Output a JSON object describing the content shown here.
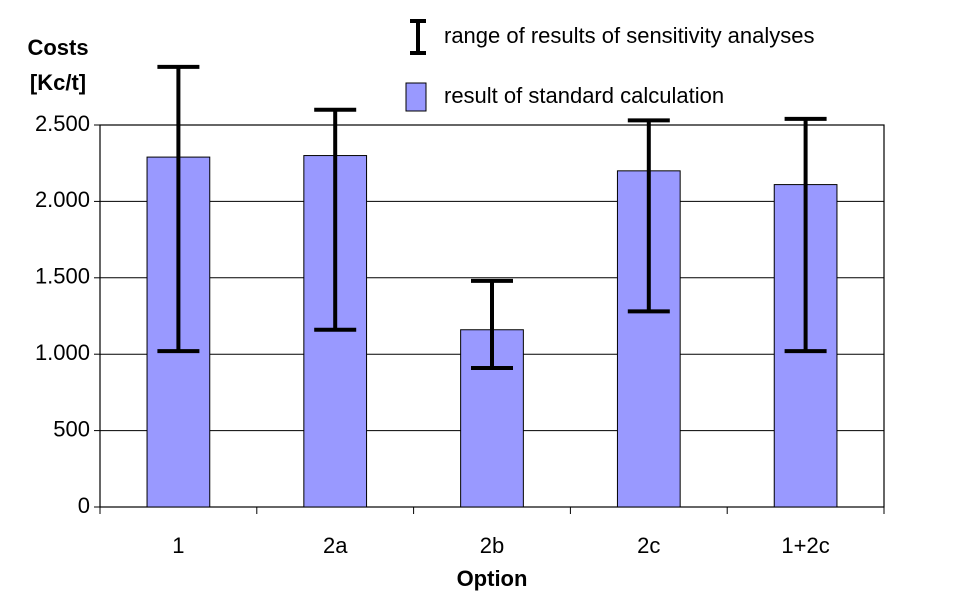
{
  "chart_data": {
    "type": "bar",
    "y_label": [
      "Costs",
      "[Kc/t]"
    ],
    "x_label": "Option",
    "categories": [
      "1",
      "2a",
      "2b",
      "2c",
      "1+2c"
    ],
    "series": [
      {
        "name": "result of standard calculation",
        "color": "#9999ff",
        "values": [
          2290,
          2300,
          1160,
          2200,
          2110
        ]
      }
    ],
    "error_bars": {
      "name": "range of results of sensitivity analyses",
      "color": "#000000",
      "low": [
        1020,
        1160,
        910,
        1280,
        1020
      ],
      "high": [
        2880,
        2600,
        1480,
        2530,
        2540
      ]
    },
    "ylim": [
      0,
      2500
    ],
    "yticks": [
      0,
      500,
      {
        "value": 1000,
        "label": "1.000"
      },
      {
        "value": 1500,
        "label": "1.500"
      },
      {
        "value": 2000,
        "label": "2.000"
      },
      {
        "value": 2500,
        "label": "2.500"
      }
    ],
    "grid": true
  }
}
